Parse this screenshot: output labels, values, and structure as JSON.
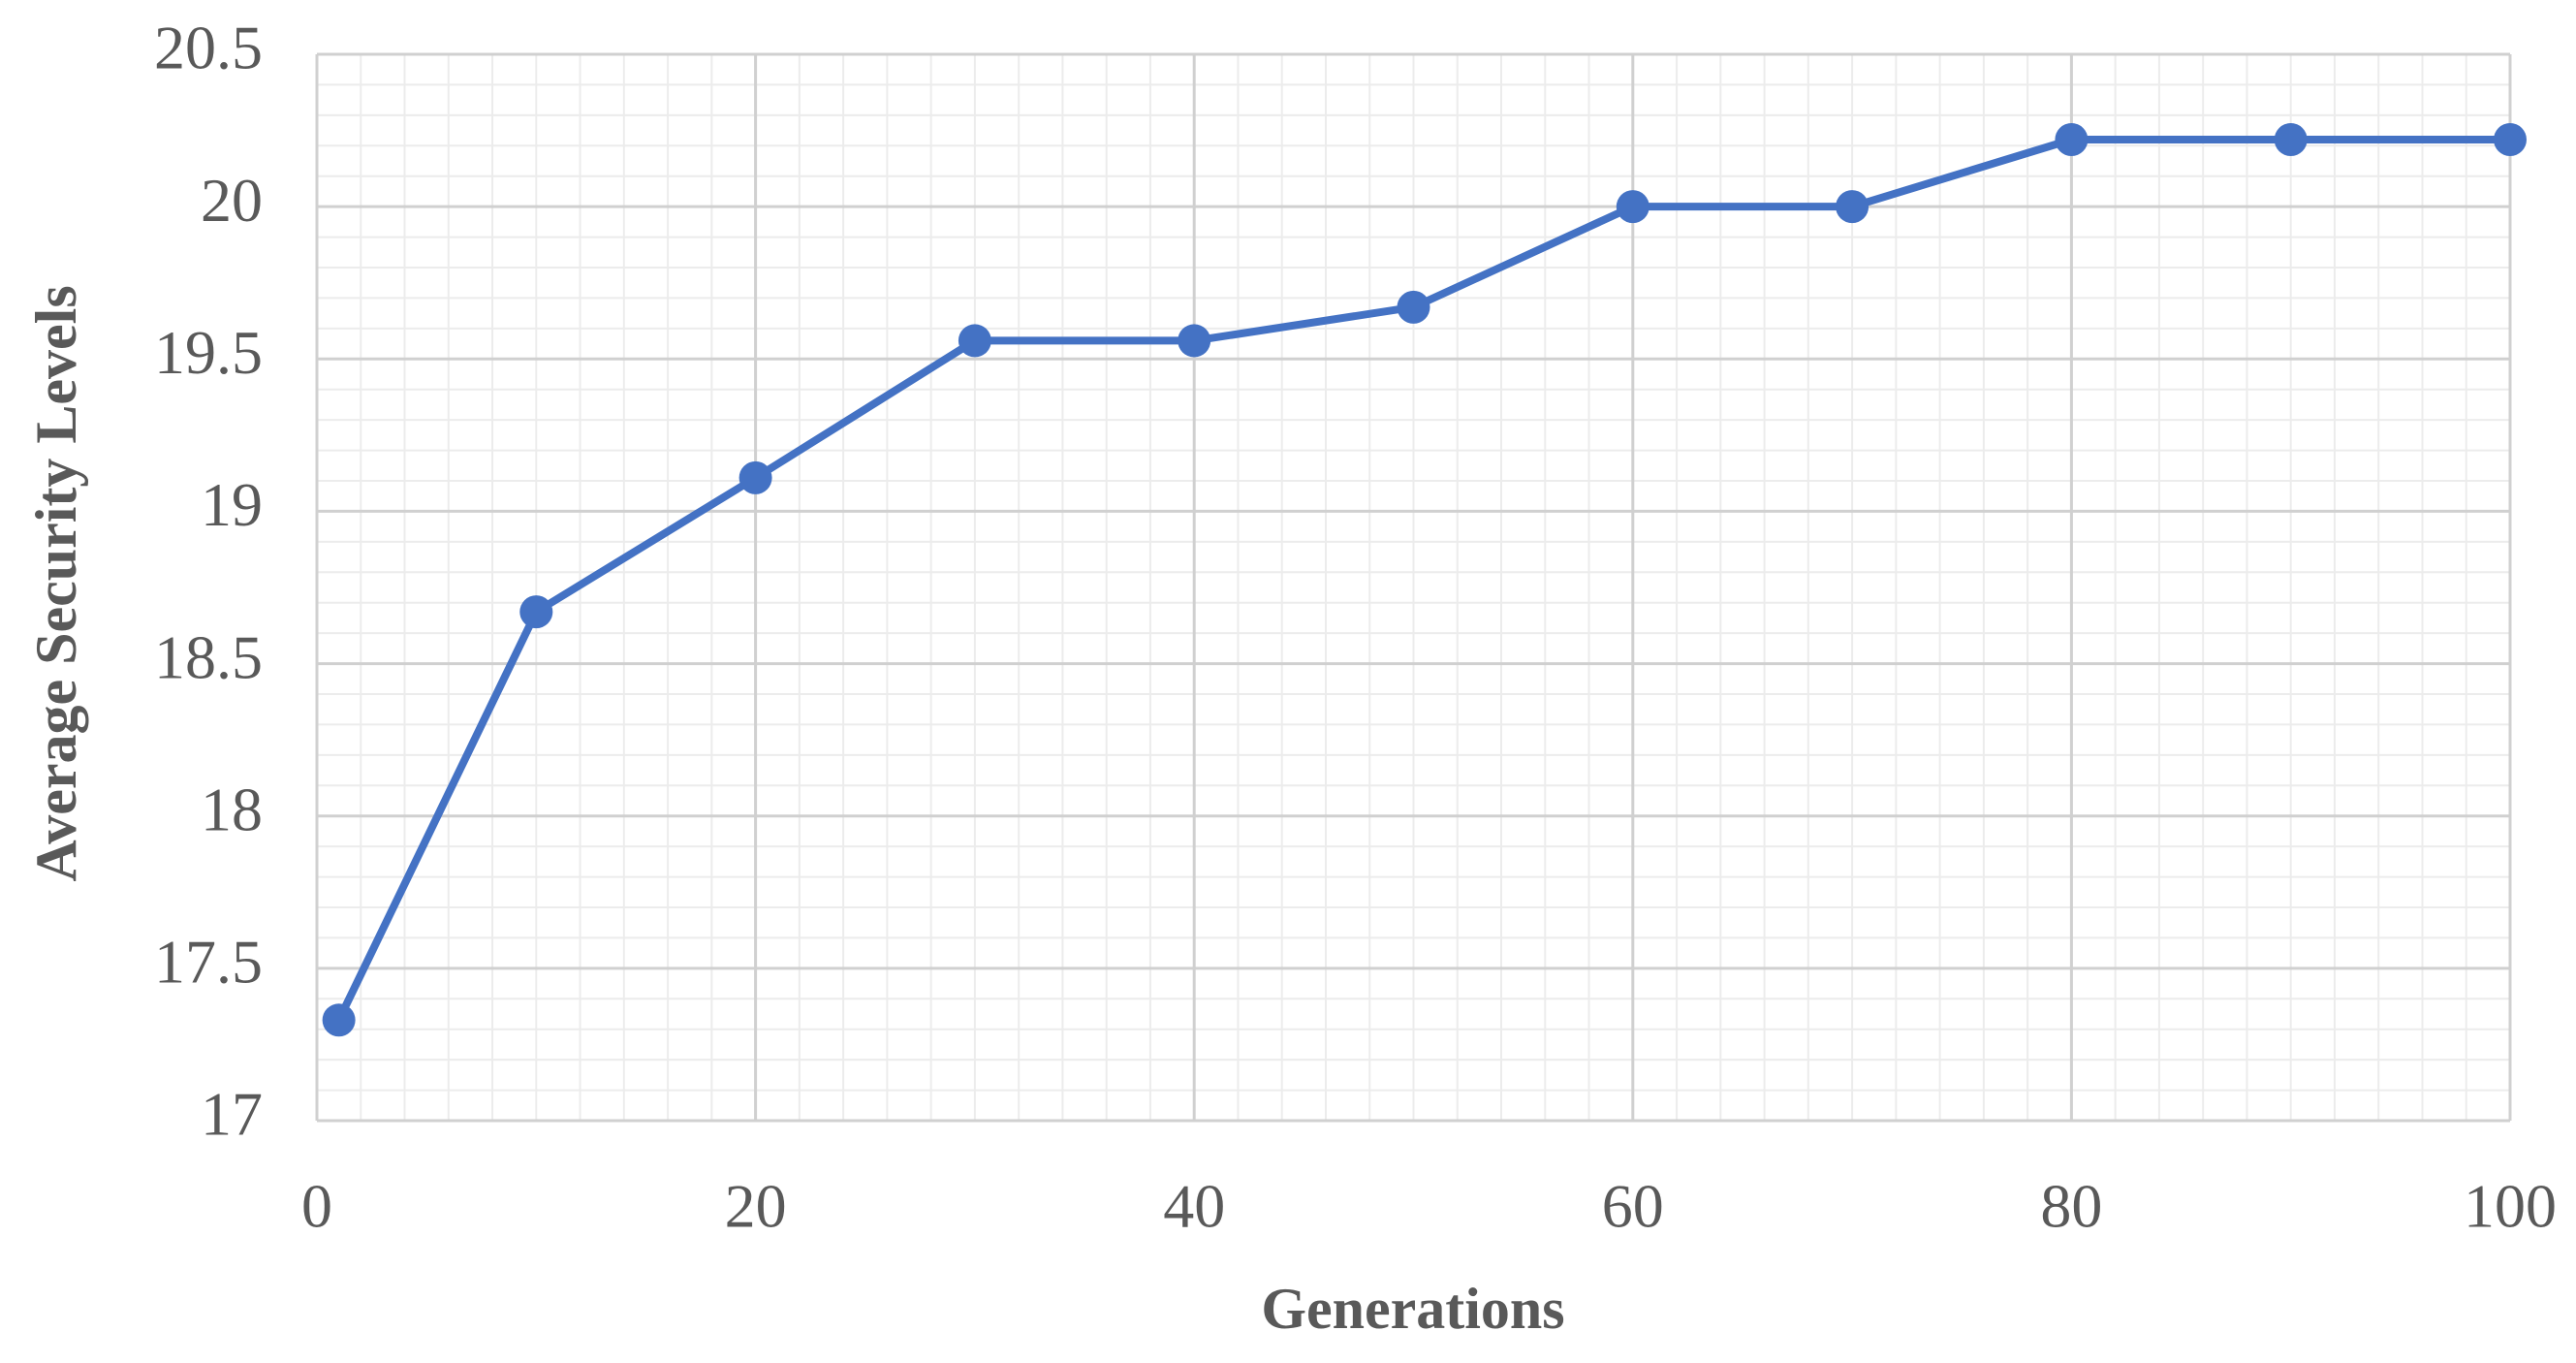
{
  "chart_data": {
    "type": "line",
    "x_label": "Generations",
    "y_label": "Average Security Levels",
    "x": [
      1,
      10,
      20,
      30,
      40,
      50,
      60,
      70,
      80,
      90,
      100
    ],
    "series": [
      {
        "color": "#4472c4",
        "values": [
          17.33,
          18.67,
          19.11,
          19.56,
          19.56,
          19.67,
          20,
          20,
          20.22,
          20.22,
          20.22
        ]
      }
    ],
    "xlim": [
      0,
      100
    ],
    "xticks": [
      0,
      20,
      40,
      60,
      80,
      100
    ],
    "ylim": [
      17,
      20.5
    ],
    "yticks": [
      17,
      17.5,
      18,
      18.5,
      19,
      19.5,
      20,
      20.5
    ],
    "grid": true,
    "minor_grid": true
  }
}
